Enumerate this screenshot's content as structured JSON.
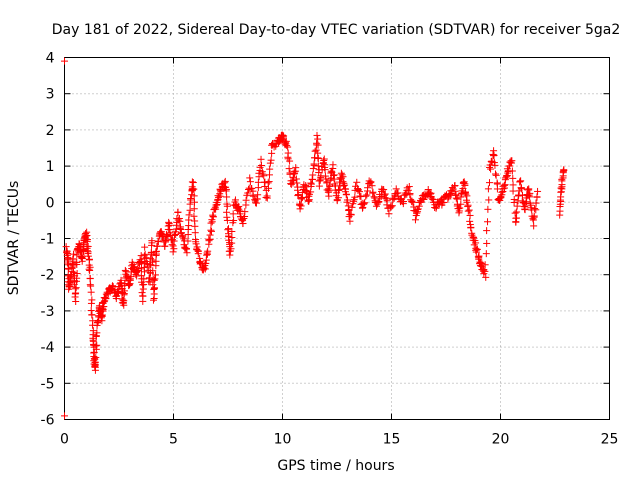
{
  "chart_data": {
    "type": "scatter",
    "title": "Day 181 of 2022, Sidereal Day-to-day VTEC variation (SDTVAR) for receiver 5ga2",
    "xlabel": "GPS time / hours",
    "ylabel": "SDTVAR / TECUs",
    "xlim": [
      0,
      25
    ],
    "ylim": [
      -6,
      4
    ],
    "xticks": [
      0,
      5,
      10,
      15,
      20,
      25
    ],
    "yticks": [
      -6,
      -5,
      -4,
      -3,
      -2,
      -1,
      0,
      1,
      2,
      3,
      4
    ],
    "grid": true,
    "marker": "+",
    "color": "#ff0000",
    "series": [
      {
        "name": "SDTVAR",
        "description": "dense per-epoch samples, approximate reading of trace",
        "points": [
          [
            0.0,
            3.9
          ],
          [
            0.0,
            -5.9
          ],
          [
            0.1,
            -1.3
          ],
          [
            0.15,
            -1.6
          ],
          [
            0.2,
            -2.4
          ],
          [
            0.3,
            -2.0
          ],
          [
            0.4,
            -1.5
          ],
          [
            0.5,
            -2.7
          ],
          [
            0.6,
            -1.4
          ],
          [
            0.7,
            -1.2
          ],
          [
            0.8,
            -1.6
          ],
          [
            0.9,
            -1.0
          ],
          [
            1.0,
            -0.9
          ],
          [
            1.1,
            -1.4
          ],
          [
            1.2,
            -2.2
          ],
          [
            1.3,
            -3.6
          ],
          [
            1.35,
            -4.3
          ],
          [
            1.4,
            -4.6
          ],
          [
            1.5,
            -3.4
          ],
          [
            1.6,
            -2.9
          ],
          [
            1.7,
            -3.2
          ],
          [
            1.8,
            -2.7
          ],
          [
            2.0,
            -2.5
          ],
          [
            2.2,
            -2.3
          ],
          [
            2.4,
            -2.6
          ],
          [
            2.6,
            -2.2
          ],
          [
            2.7,
            -2.9
          ],
          [
            2.8,
            -1.9
          ],
          [
            3.0,
            -2.3
          ],
          [
            3.1,
            -1.7
          ],
          [
            3.3,
            -2.0
          ],
          [
            3.5,
            -1.5
          ],
          [
            3.6,
            -2.7
          ],
          [
            3.7,
            -1.3
          ],
          [
            3.9,
            -2.2
          ],
          [
            4.0,
            -1.1
          ],
          [
            4.1,
            -2.7
          ],
          [
            4.2,
            -1.4
          ],
          [
            4.4,
            -0.8
          ],
          [
            4.6,
            -1.2
          ],
          [
            4.8,
            -0.6
          ],
          [
            5.0,
            -1.3
          ],
          [
            5.2,
            -0.3
          ],
          [
            5.4,
            -0.9
          ],
          [
            5.6,
            -1.4
          ],
          [
            5.8,
            0.1
          ],
          [
            5.9,
            0.6
          ],
          [
            6.0,
            -1.0
          ],
          [
            6.2,
            -1.6
          ],
          [
            6.4,
            -1.9
          ],
          [
            6.6,
            -1.2
          ],
          [
            6.8,
            -0.4
          ],
          [
            7.0,
            0.0
          ],
          [
            7.2,
            0.4
          ],
          [
            7.4,
            0.5
          ],
          [
            7.5,
            -0.8
          ],
          [
            7.6,
            -1.5
          ],
          [
            7.8,
            0.0
          ],
          [
            8.0,
            -0.2
          ],
          [
            8.2,
            -0.6
          ],
          [
            8.5,
            0.6
          ],
          [
            8.8,
            -0.1
          ],
          [
            9.0,
            1.1
          ],
          [
            9.3,
            0.1
          ],
          [
            9.5,
            1.5
          ],
          [
            9.8,
            1.7
          ],
          [
            10.0,
            1.8
          ],
          [
            10.2,
            1.6
          ],
          [
            10.4,
            0.5
          ],
          [
            10.6,
            0.9
          ],
          [
            10.8,
            -0.2
          ],
          [
            11.0,
            0.5
          ],
          [
            11.2,
            0.0
          ],
          [
            11.4,
            0.8
          ],
          [
            11.6,
            1.8
          ],
          [
            11.7,
            0.5
          ],
          [
            11.9,
            1.2
          ],
          [
            12.1,
            0.2
          ],
          [
            12.3,
            1.0
          ],
          [
            12.5,
            0.0
          ],
          [
            12.7,
            0.8
          ],
          [
            12.9,
            0.3
          ],
          [
            13.1,
            -0.5
          ],
          [
            13.4,
            0.5
          ],
          [
            13.7,
            -0.2
          ],
          [
            14.0,
            0.6
          ],
          [
            14.3,
            -0.1
          ],
          [
            14.6,
            0.4
          ],
          [
            14.9,
            -0.3
          ],
          [
            15.2,
            0.3
          ],
          [
            15.5,
            0.0
          ],
          [
            15.8,
            0.4
          ],
          [
            16.1,
            -0.4
          ],
          [
            16.4,
            0.1
          ],
          [
            16.7,
            0.3
          ],
          [
            17.0,
            -0.1
          ],
          [
            17.3,
            0.0
          ],
          [
            17.6,
            0.2
          ],
          [
            17.9,
            0.4
          ],
          [
            18.1,
            -0.3
          ],
          [
            18.3,
            0.6
          ],
          [
            18.5,
            0.0
          ],
          [
            18.7,
            -0.9
          ],
          [
            18.9,
            -1.3
          ],
          [
            19.1,
            -1.7
          ],
          [
            19.3,
            -2.0
          ],
          [
            19.5,
            0.9
          ],
          [
            19.7,
            1.4
          ],
          [
            19.9,
            0.0
          ],
          [
            20.1,
            0.3
          ],
          [
            20.3,
            0.8
          ],
          [
            20.5,
            1.2
          ],
          [
            20.7,
            -0.6
          ],
          [
            20.9,
            0.6
          ],
          [
            21.1,
            -0.2
          ],
          [
            21.3,
            0.4
          ],
          [
            21.5,
            -0.6
          ],
          [
            21.7,
            0.3
          ],
          [
            22.7,
            -0.3
          ],
          [
            22.8,
            0.4
          ],
          [
            22.9,
            0.9
          ]
        ]
      }
    ]
  }
}
